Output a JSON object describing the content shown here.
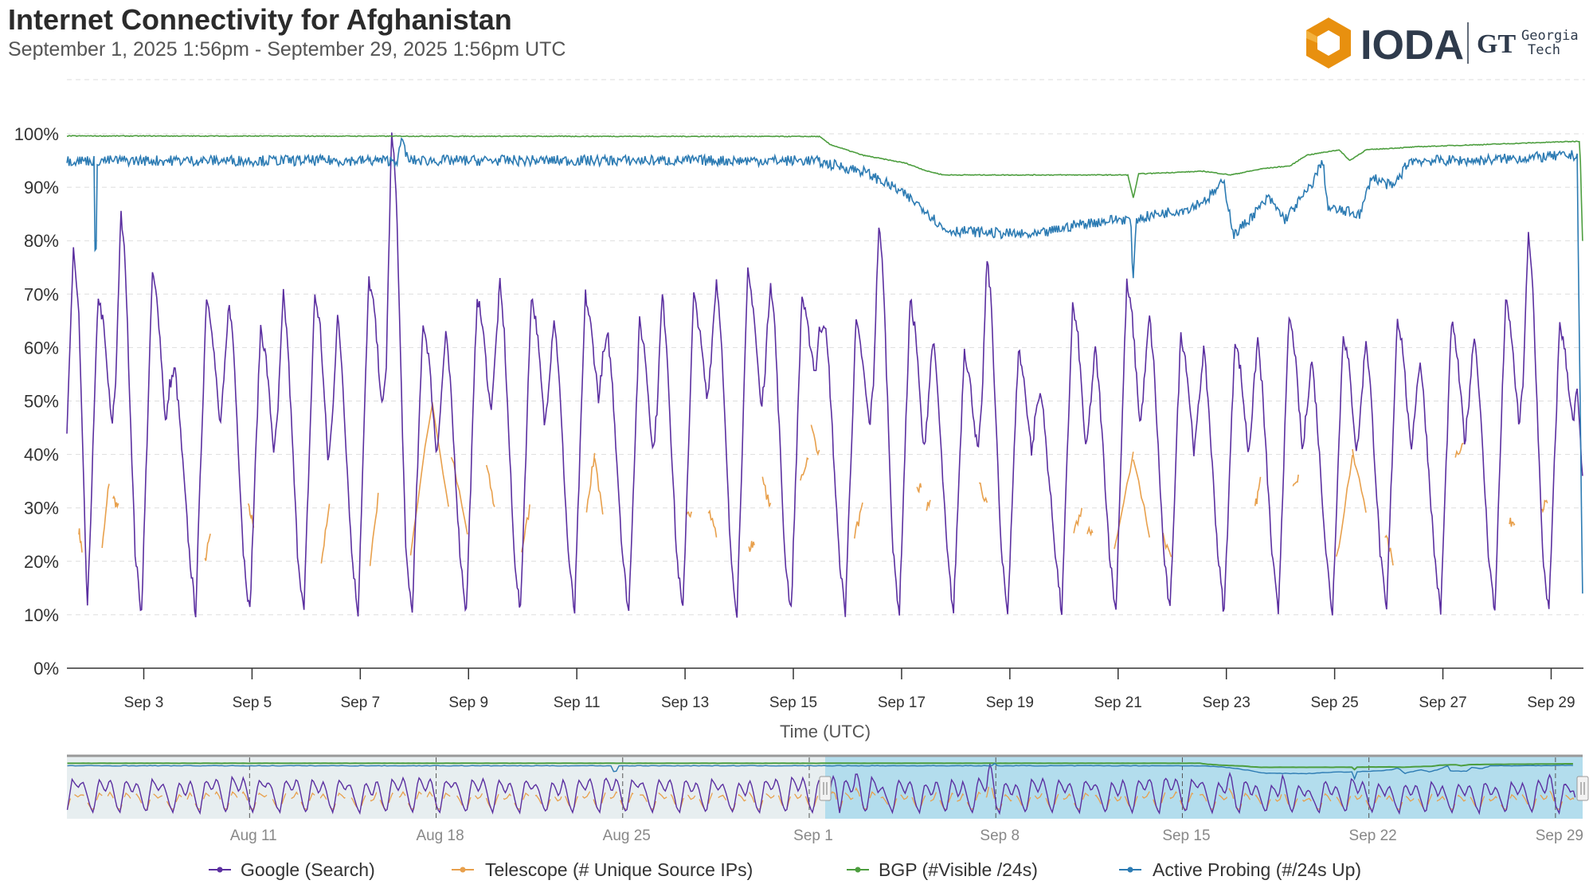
{
  "header": {
    "title": "Internet Connectivity for Afghanistan",
    "subtitle": "September 1, 2025 1:56pm - September 29, 2025 1:56pm UTC"
  },
  "logos": {
    "ioda": "IODA",
    "georgia_tech_mark": "GT",
    "georgia_tech_text": [
      "Georgia",
      "Tech"
    ]
  },
  "colors": {
    "google": "#5b2fa0",
    "telescope": "#e8a04c",
    "bgp": "#4d9e3f",
    "active_probing": "#2c7bb3",
    "navigator_selected": "#b3dded",
    "navigator_unselected": "#e7eef0"
  },
  "chart_data": {
    "type": "line",
    "title": "Internet Connectivity for Afghanistan",
    "xlabel": "Time (UTC)",
    "ylabel": "",
    "ylim": [
      0,
      100
    ],
    "y_ticks": [
      "0%",
      "10%",
      "20%",
      "30%",
      "40%",
      "50%",
      "60%",
      "70%",
      "80%",
      "90%",
      "100%"
    ],
    "x_ticks": [
      "Sep 3",
      "Sep 5",
      "Sep 7",
      "Sep 9",
      "Sep 11",
      "Sep 13",
      "Sep 15",
      "Sep 17",
      "Sep 19",
      "Sep 21",
      "Sep 23",
      "Sep 25",
      "Sep 27",
      "Sep 29"
    ],
    "x_unit": "days since Sep 1 13:56 UTC",
    "x_range_days": [
      0,
      28
    ],
    "grid": true,
    "legend_placement": "bottom-center",
    "series": [
      {
        "name": "Google (Search)",
        "key": "google",
        "trough_value": 10,
        "daily_profile_fields": [
          "date",
          "peak1",
          "dip",
          "peak2"
        ],
        "start_points": [
          [
            0,
            43
          ],
          [
            0.12,
            79
          ],
          [
            0.22,
            66
          ],
          [
            0.378,
            10
          ]
        ],
        "daily_profile": [
          [
            "Sep 2",
            70,
            45,
            85
          ],
          [
            "Sep 3",
            74,
            45,
            56
          ],
          [
            "Sep 4",
            70,
            45,
            69
          ],
          [
            "Sep 5",
            64,
            40,
            70
          ],
          [
            "Sep 6",
            70,
            38,
            66
          ],
          [
            "Sep 7",
            73,
            48,
            100
          ],
          [
            "Sep 8",
            65,
            40,
            63
          ],
          [
            "Sep 9",
            70,
            48,
            72
          ],
          [
            "Sep 10",
            70,
            45,
            66
          ],
          [
            "Sep 11",
            70,
            50,
            62
          ],
          [
            "Sep 12",
            65,
            40,
            70
          ],
          [
            "Sep 13",
            70,
            50,
            73
          ],
          [
            "Sep 14",
            74,
            48,
            73
          ],
          [
            "Sep 15",
            70,
            55,
            65
          ],
          [
            "Sep 16",
            65,
            45,
            83
          ],
          [
            "Sep 17",
            69,
            40,
            62
          ],
          [
            "Sep 18",
            60,
            40,
            77
          ],
          [
            "Sep 19",
            60,
            40,
            52
          ],
          [
            "Sep 20",
            68,
            40,
            60
          ],
          [
            "Sep 21",
            72,
            45,
            66
          ],
          [
            "Sep 22",
            63,
            40,
            60
          ],
          [
            "Sep 23",
            62,
            40,
            62
          ],
          [
            "Sep 24",
            66,
            40,
            58
          ],
          [
            "Sep 25",
            63,
            40,
            62
          ],
          [
            "Sep 26",
            66,
            40,
            58
          ],
          [
            "Sep 27",
            65,
            42,
            63
          ],
          [
            "Sep 28",
            69,
            45,
            81
          ],
          [
            "Sep 29",
            65,
            45,
            35
          ]
        ]
      },
      {
        "name": "Telescope (# Unique Source IPs)",
        "key": "telescope",
        "segments_fields": [
          "start_day",
          "end_day",
          "start_value",
          "end_value"
        ],
        "segments": [
          [
            0.22,
            0.28,
            26,
            22
          ],
          [
            0.65,
            0.78,
            22,
            35
          ],
          [
            0.85,
            0.95,
            32,
            30
          ],
          [
            2.55,
            2.65,
            20,
            25
          ],
          [
            3.35,
            3.45,
            30,
            27
          ],
          [
            4.7,
            4.85,
            20,
            30
          ],
          [
            5.6,
            5.75,
            20,
            32
          ],
          [
            6.35,
            6.75,
            22,
            50
          ],
          [
            6.75,
            7.05,
            50,
            30
          ],
          [
            7.1,
            7.4,
            40,
            25
          ],
          [
            7.75,
            7.9,
            38,
            30
          ],
          [
            8.4,
            8.55,
            22,
            30
          ],
          [
            9.6,
            9.75,
            30,
            40
          ],
          [
            9.75,
            9.9,
            40,
            28
          ],
          [
            11.45,
            11.55,
            28,
            30
          ],
          [
            11.85,
            12.0,
            30,
            25
          ],
          [
            12.6,
            12.7,
            22,
            24
          ],
          [
            12.85,
            13.0,
            35,
            30
          ],
          [
            13.55,
            13.7,
            35,
            40
          ],
          [
            13.75,
            13.9,
            45,
            40
          ],
          [
            14.55,
            14.7,
            25,
            30
          ],
          [
            15.7,
            15.78,
            33,
            34
          ],
          [
            15.88,
            15.95,
            30,
            31
          ],
          [
            16.85,
            17.0,
            35,
            30
          ],
          [
            18.6,
            18.75,
            25,
            30
          ],
          [
            18.85,
            18.95,
            25,
            26
          ],
          [
            19.35,
            19.7,
            22,
            40
          ],
          [
            19.7,
            20.0,
            40,
            25
          ],
          [
            20.25,
            20.4,
            25,
            20
          ],
          [
            21.95,
            22.05,
            30,
            35
          ],
          [
            22.65,
            22.75,
            35,
            36
          ],
          [
            23.45,
            23.75,
            20,
            40
          ],
          [
            23.75,
            24.0,
            40,
            30
          ],
          [
            24.35,
            24.5,
            25,
            20
          ],
          [
            25.65,
            25.8,
            40,
            42
          ],
          [
            26.65,
            26.75,
            27,
            28
          ],
          [
            27.25,
            27.35,
            30,
            31
          ]
        ]
      },
      {
        "name": "BGP (#Visible /24s)",
        "key": "bgp",
        "points_fields": [
          "day",
          "value"
        ],
        "points": [
          [
            0,
            99.6
          ],
          [
            13.9,
            99.5
          ],
          [
            14.1,
            98
          ],
          [
            14.7,
            96
          ],
          [
            15.5,
            94.5
          ],
          [
            15.9,
            93
          ],
          [
            16.2,
            92.3
          ],
          [
            19.6,
            92.3
          ],
          [
            19.7,
            88
          ],
          [
            19.8,
            92.5
          ],
          [
            21.0,
            93
          ],
          [
            21.5,
            92.3
          ],
          [
            22.1,
            93.5
          ],
          [
            22.6,
            94
          ],
          [
            22.9,
            96
          ],
          [
            23.5,
            97
          ],
          [
            23.7,
            95
          ],
          [
            24.0,
            97
          ],
          [
            25.0,
            97.6
          ],
          [
            26.2,
            98
          ],
          [
            27.9,
            98.6
          ],
          [
            27.95,
            98.6
          ],
          [
            28,
            80
          ]
        ]
      },
      {
        "name": "Active Probing (#/24s Up)",
        "key": "active_probing",
        "points_fields": [
          "day",
          "value"
        ],
        "points": [
          [
            0,
            95
          ],
          [
            0.5,
            95
          ],
          [
            0.53,
            69
          ],
          [
            0.56,
            95
          ],
          [
            6.1,
            95
          ],
          [
            6.2,
            99
          ],
          [
            6.3,
            95
          ],
          [
            13.77,
            95
          ],
          [
            14.71,
            93
          ],
          [
            15.27,
            90
          ],
          [
            15.84,
            86
          ],
          [
            16.21,
            82
          ],
          [
            17.9,
            81
          ],
          [
            18.65,
            83
          ],
          [
            19.4,
            84
          ],
          [
            19.65,
            84
          ],
          [
            19.7,
            72
          ],
          [
            19.75,
            84
          ],
          [
            20.15,
            85
          ],
          [
            20.71,
            86
          ],
          [
            21.09,
            88
          ],
          [
            21.37,
            91
          ],
          [
            21.56,
            81
          ],
          [
            21.93,
            85
          ],
          [
            22.2,
            88
          ],
          [
            22.5,
            84
          ],
          [
            22.97,
            90
          ],
          [
            23.2,
            95
          ],
          [
            23.3,
            86
          ],
          [
            23.9,
            85
          ],
          [
            24.1,
            92
          ],
          [
            24.5,
            90
          ],
          [
            24.8,
            95
          ],
          [
            26.0,
            95
          ],
          [
            27.9,
            96
          ],
          [
            28,
            13
          ]
        ]
      }
    ],
    "navigator": {
      "x_ticks": [
        "Aug 11",
        "Aug 18",
        "Aug 25",
        "Sep 1",
        "Sep 8",
        "Sep 15",
        "Sep 22",
        "Sep 29"
      ],
      "range_days": [
        -28.6,
        28
      ],
      "selected_range_days": [
        0,
        28
      ]
    }
  }
}
